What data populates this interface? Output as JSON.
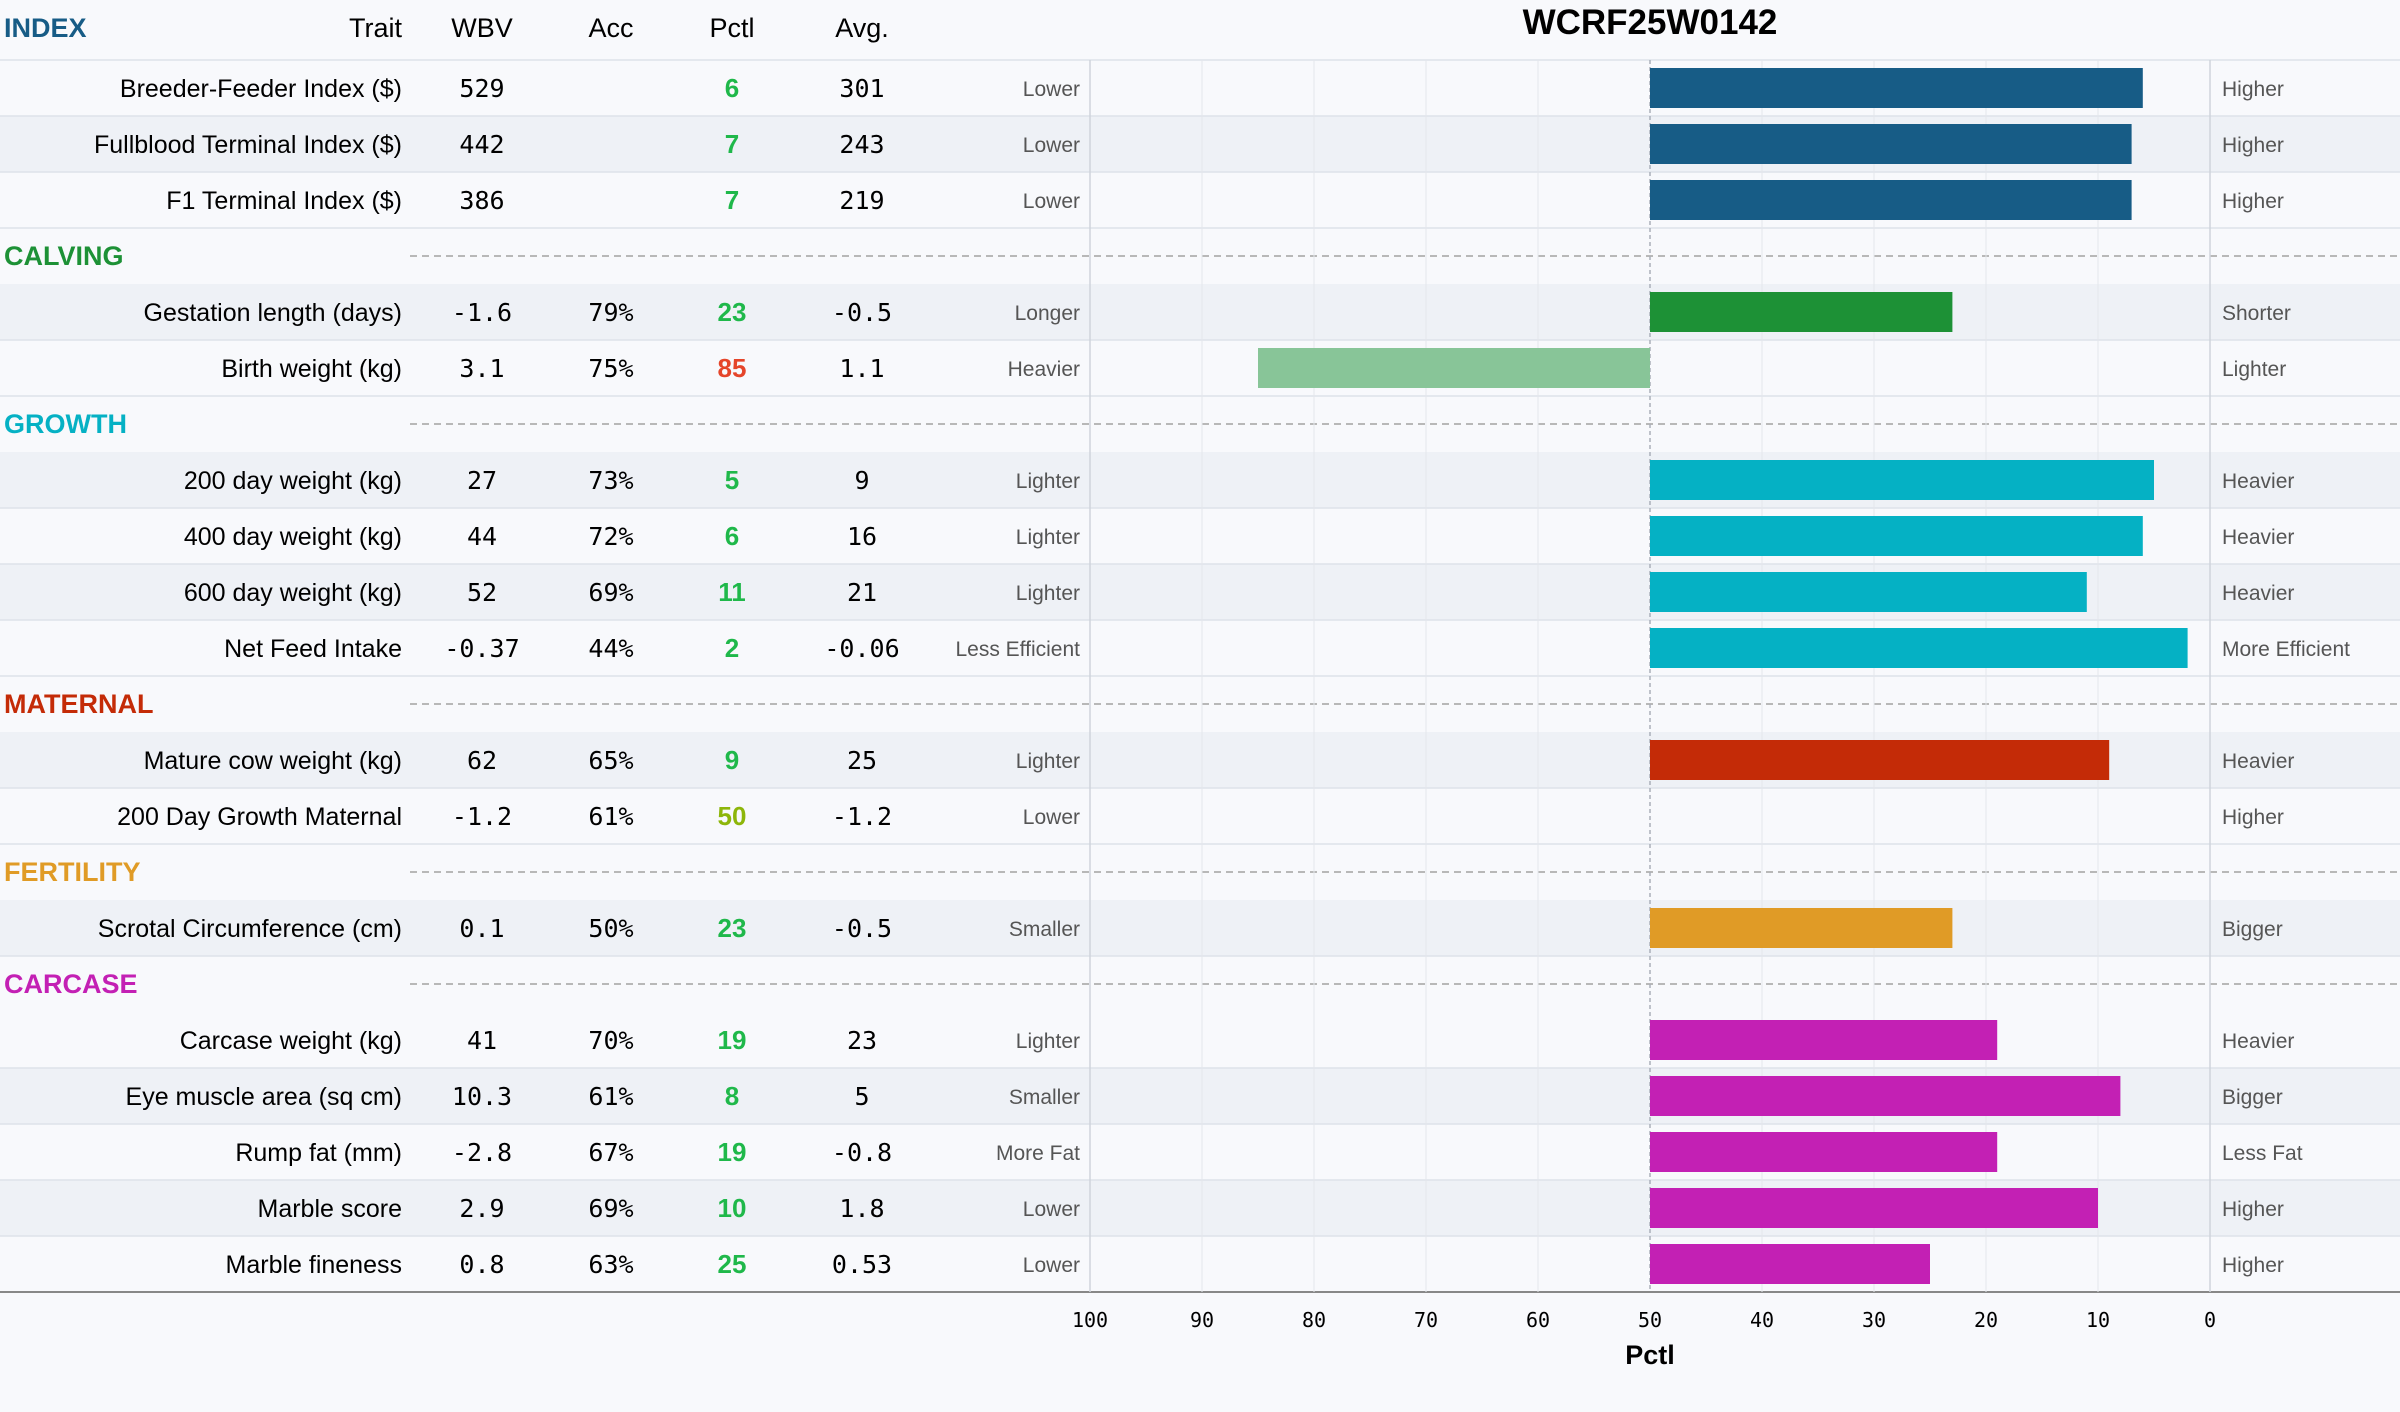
{
  "title": "WCRF25W0142",
  "header": {
    "index_label": "INDEX",
    "trait": "Trait",
    "wbv": "WBV",
    "acc": "Acc",
    "pctl": "Pctl",
    "avg": "Avg."
  },
  "colors": {
    "INDEX": "#175c86",
    "CALVING": "#1d9136",
    "CALVING_light": "#88c598",
    "GROWTH": "#05b1c4",
    "MATERNAL": "#c42b07",
    "FERTILITY": "#e09b26",
    "CARCASE": "#c320b4",
    "pctl_good": "#1fb84a",
    "pctl_mid": "#8db60a",
    "pctl_bad": "#e5452a"
  },
  "rows": [
    {
      "type": "trait",
      "group": "INDEX",
      "trait": "Breeder-Feeder Index ($)",
      "wbv": "529",
      "acc": "",
      "pctl": 6,
      "avg": "301",
      "left": "Lower",
      "right": "Higher"
    },
    {
      "type": "trait",
      "group": "INDEX",
      "trait": "Fullblood Terminal Index ($)",
      "wbv": "442",
      "acc": "",
      "pctl": 7,
      "avg": "243",
      "left": "Lower",
      "right": "Higher"
    },
    {
      "type": "trait",
      "group": "INDEX",
      "trait": "F1 Terminal Index ($)",
      "wbv": "386",
      "acc": "",
      "pctl": 7,
      "avg": "219",
      "left": "Lower",
      "right": "Higher"
    },
    {
      "type": "section",
      "label": "CALVING"
    },
    {
      "type": "trait",
      "group": "CALVING",
      "trait": "Gestation length (days)",
      "wbv": "-1.6",
      "acc": "79%",
      "pctl": 23,
      "avg": "-0.5",
      "left": "Longer",
      "right": "Shorter"
    },
    {
      "type": "trait",
      "group": "CALVING",
      "trait": "Birth weight (kg)",
      "wbv": "3.1",
      "acc": "75%",
      "pctl": 85,
      "avg": "1.1",
      "left": "Heavier",
      "right": "Lighter"
    },
    {
      "type": "section",
      "label": "GROWTH"
    },
    {
      "type": "trait",
      "group": "GROWTH",
      "trait": "200 day weight (kg)",
      "wbv": "27",
      "acc": "73%",
      "pctl": 5,
      "avg": "9",
      "left": "Lighter",
      "right": "Heavier"
    },
    {
      "type": "trait",
      "group": "GROWTH",
      "trait": "400 day weight (kg)",
      "wbv": "44",
      "acc": "72%",
      "pctl": 6,
      "avg": "16",
      "left": "Lighter",
      "right": "Heavier"
    },
    {
      "type": "trait",
      "group": "GROWTH",
      "trait": "600 day weight (kg)",
      "wbv": "52",
      "acc": "69%",
      "pctl": 11,
      "avg": "21",
      "left": "Lighter",
      "right": "Heavier"
    },
    {
      "type": "trait",
      "group": "GROWTH",
      "trait": "Net Feed Intake",
      "wbv": "-0.37",
      "acc": "44%",
      "pctl": 2,
      "avg": "-0.06",
      "left": "Less Efficient",
      "right": "More Efficient"
    },
    {
      "type": "section",
      "label": "MATERNAL"
    },
    {
      "type": "trait",
      "group": "MATERNAL",
      "trait": "Mature cow weight (kg)",
      "wbv": "62",
      "acc": "65%",
      "pctl": 9,
      "avg": "25",
      "left": "Lighter",
      "right": "Heavier"
    },
    {
      "type": "trait",
      "group": "MATERNAL",
      "trait": "200 Day Growth Maternal",
      "wbv": "-1.2",
      "acc": "61%",
      "pctl": 50,
      "avg": "-1.2",
      "left": "Lower",
      "right": "Higher"
    },
    {
      "type": "section",
      "label": "FERTILITY"
    },
    {
      "type": "trait",
      "group": "FERTILITY",
      "trait": "Scrotal Circumference (cm)",
      "wbv": "0.1",
      "acc": "50%",
      "pctl": 23,
      "avg": "-0.5",
      "left": "Smaller",
      "right": "Bigger"
    },
    {
      "type": "section",
      "label": "CARCASE"
    },
    {
      "type": "trait",
      "group": "CARCASE",
      "trait": "Carcase weight (kg)",
      "wbv": "41",
      "acc": "70%",
      "pctl": 19,
      "avg": "23",
      "left": "Lighter",
      "right": "Heavier"
    },
    {
      "type": "trait",
      "group": "CARCASE",
      "trait": "Eye muscle area (sq cm)",
      "wbv": "10.3",
      "acc": "61%",
      "pctl": 8,
      "avg": "5",
      "left": "Smaller",
      "right": "Bigger"
    },
    {
      "type": "trait",
      "group": "CARCASE",
      "trait": "Rump fat (mm)",
      "wbv": "-2.8",
      "acc": "67%",
      "pctl": 19,
      "avg": "-0.8",
      "left": "More Fat",
      "right": "Less Fat"
    },
    {
      "type": "trait",
      "group": "CARCASE",
      "trait": "Marble score",
      "wbv": "2.9",
      "acc": "69%",
      "pctl": 10,
      "avg": "1.8",
      "left": "Lower",
      "right": "Higher"
    },
    {
      "type": "trait",
      "group": "CARCASE",
      "trait": "Marble fineness",
      "wbv": "0.8",
      "acc": "63%",
      "pctl": 25,
      "avg": "0.53",
      "left": "Lower",
      "right": "Higher"
    }
  ],
  "chart_data": {
    "type": "bar",
    "orientation": "horizontal",
    "title": "WCRF25W0142",
    "xlabel": "Pctl",
    "xlim": [
      100,
      0
    ],
    "x_reversed": true,
    "baseline": 50,
    "xticks": [
      100,
      90,
      80,
      70,
      60,
      50,
      40,
      30,
      20,
      10,
      0
    ],
    "grid": true,
    "categories": [
      "Breeder-Feeder Index ($)",
      "Fullblood Terminal Index ($)",
      "F1 Terminal Index ($)",
      "Gestation length (days)",
      "Birth weight (kg)",
      "200 day weight (kg)",
      "400 day weight (kg)",
      "600 day weight (kg)",
      "Net Feed Intake",
      "Mature cow weight (kg)",
      "200 Day Growth Maternal",
      "Scrotal Circumference (cm)",
      "Carcase weight (kg)",
      "Eye muscle area (sq cm)",
      "Rump fat (mm)",
      "Marble score",
      "Marble fineness"
    ],
    "values": [
      6,
      7,
      7,
      23,
      85,
      5,
      6,
      11,
      2,
      9,
      50,
      23,
      19,
      8,
      19,
      10,
      25
    ]
  }
}
